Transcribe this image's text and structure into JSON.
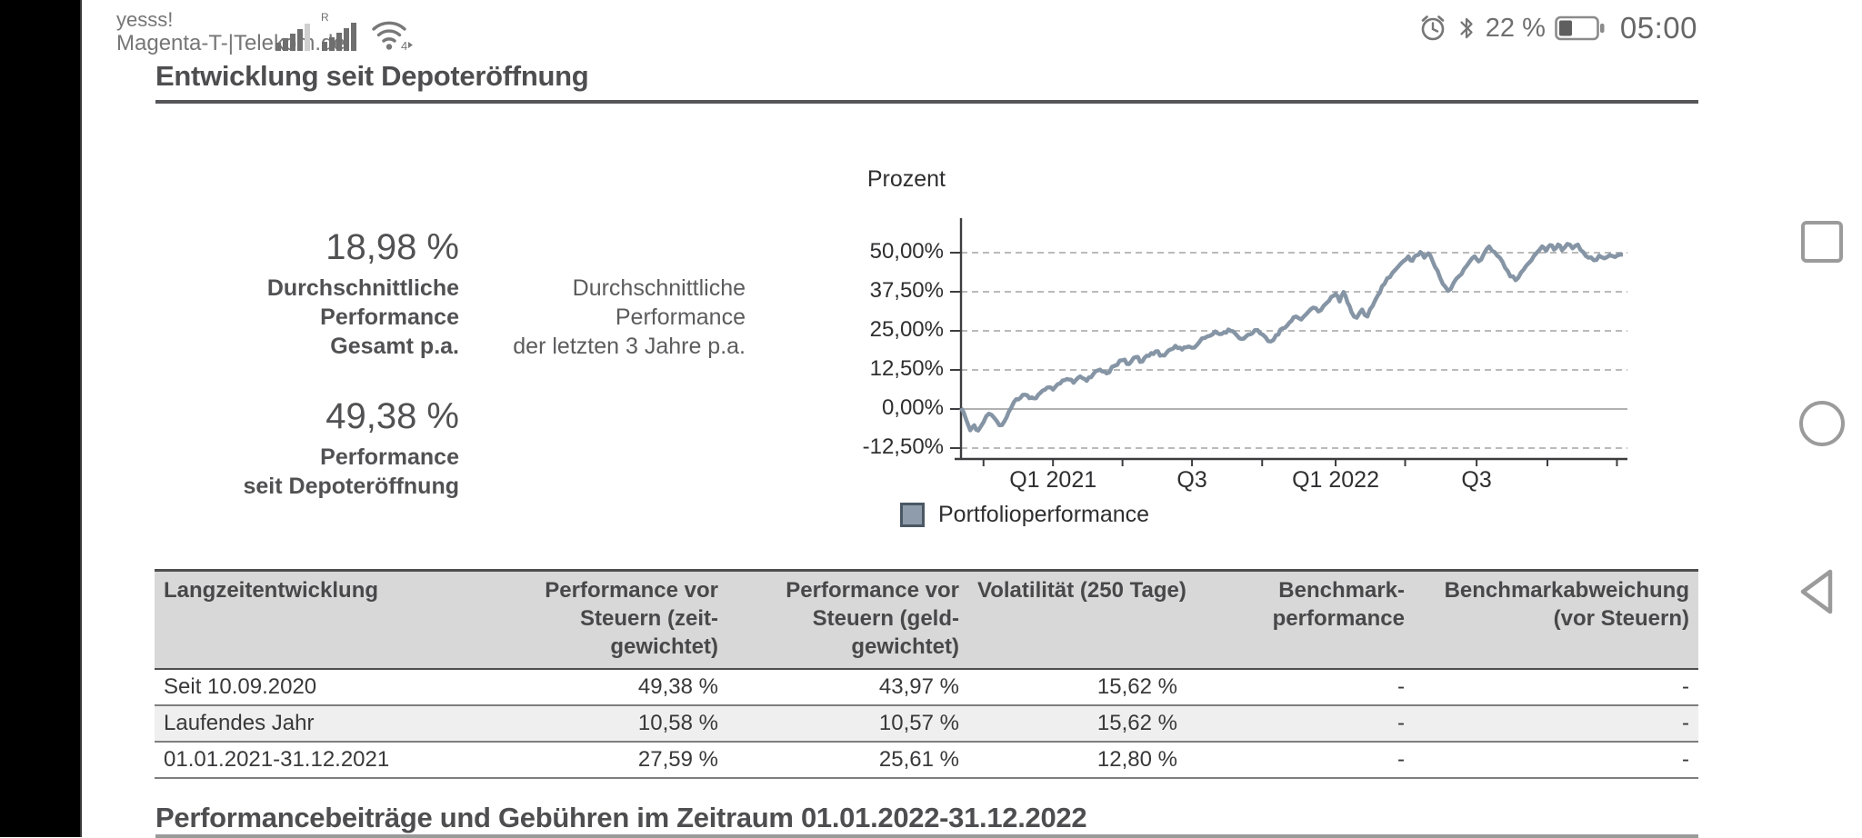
{
  "status_bar": {
    "carrier_line1": "yesss!",
    "carrier_line2": "Magenta-T-|Telekom.de",
    "roaming_badge": "R",
    "wifi_badge": "4",
    "battery_level": "22 %",
    "time": "05:00"
  },
  "page": {
    "title": "Entwicklung seit Depoteröffnung",
    "next_section_title": "Performancebeiträge und Gebühren im Zeitraum 01.01.2022-31.12.2022"
  },
  "stats": {
    "avg_total_value": "18,98 %",
    "avg_total_label": "Durchschnittliche\nPerformance\nGesamt p.a.",
    "avg_3y_label": "Durchschnittliche\nPerformance\nder letzten 3 Jahre p.a.",
    "since_opening_value": "49,38 %",
    "since_opening_label": "Performance\nseit Depoteröffnung"
  },
  "chart_data": {
    "type": "line",
    "axis_title": "Prozent",
    "ylabel": "Prozent",
    "ylim": [
      -16.3,
      61.6
    ],
    "grid": true,
    "legend_position": "bottom-left",
    "legend": [
      {
        "label": "Portfolioperformance",
        "fill": "#8e9cab",
        "border": "#4b5864"
      }
    ],
    "line_color": "#8695a5",
    "grid_color": "#a3a3a3",
    "zero_line_color": "#b2b2b2",
    "axis_color": "#3d3d3f",
    "y_ticks": [
      {
        "value": 50,
        "label": "50,00%"
      },
      {
        "value": 37.5,
        "label": "37,50%"
      },
      {
        "value": 25,
        "label": "25,00%"
      },
      {
        "value": 12.5,
        "label": "12,50%"
      },
      {
        "value": 0,
        "label": "0,00%"
      },
      {
        "value": -12.5,
        "label": "-12,50%"
      }
    ],
    "x_ticks": [
      {
        "t": 0.139,
        "label": "Q1 2021"
      },
      {
        "t": 0.349,
        "label": "Q3"
      },
      {
        "t": 0.566,
        "label": "Q1 2022"
      },
      {
        "t": 0.779,
        "label": "Q3"
      }
    ],
    "minor_ticks": [
      0.034,
      0.139,
      0.244,
      0.349,
      0.455,
      0.566,
      0.671,
      0.779,
      0.886,
      0.991
    ],
    "series": [
      {
        "name": "Portfolioperformance",
        "points": [
          [
            0.0,
            0.3
          ],
          [
            0.008,
            -3.5
          ],
          [
            0.014,
            -6.8
          ],
          [
            0.02,
            -5.2
          ],
          [
            0.026,
            -6.9
          ],
          [
            0.034,
            -4.2
          ],
          [
            0.042,
            -1.5
          ],
          [
            0.05,
            -2.8
          ],
          [
            0.058,
            -5.2
          ],
          [
            0.066,
            -3.8
          ],
          [
            0.072,
            -1.0
          ],
          [
            0.08,
            2.2
          ],
          [
            0.09,
            3.6
          ],
          [
            0.1,
            4.4
          ],
          [
            0.11,
            3.4
          ],
          [
            0.12,
            5.2
          ],
          [
            0.13,
            6.8
          ],
          [
            0.139,
            6.2
          ],
          [
            0.15,
            8.2
          ],
          [
            0.16,
            9.6
          ],
          [
            0.17,
            8.4
          ],
          [
            0.18,
            10.4
          ],
          [
            0.19,
            9.0
          ],
          [
            0.2,
            11.2
          ],
          [
            0.21,
            12.6
          ],
          [
            0.22,
            11.4
          ],
          [
            0.232,
            13.8
          ],
          [
            0.244,
            15.6
          ],
          [
            0.254,
            14.4
          ],
          [
            0.264,
            16.6
          ],
          [
            0.274,
            15.2
          ],
          [
            0.284,
            17.0
          ],
          [
            0.294,
            18.4
          ],
          [
            0.304,
            17.2
          ],
          [
            0.314,
            18.8
          ],
          [
            0.324,
            20.2
          ],
          [
            0.334,
            19.0
          ],
          [
            0.344,
            20.0
          ],
          [
            0.349,
            19.6
          ],
          [
            0.36,
            21.4
          ],
          [
            0.372,
            23.2
          ],
          [
            0.384,
            24.8
          ],
          [
            0.394,
            24.0
          ],
          [
            0.404,
            25.4
          ],
          [
            0.414,
            24.2
          ],
          [
            0.424,
            22.4
          ],
          [
            0.434,
            23.8
          ],
          [
            0.444,
            25.2
          ],
          [
            0.452,
            24.2
          ],
          [
            0.46,
            23.0
          ],
          [
            0.468,
            21.6
          ],
          [
            0.476,
            23.6
          ],
          [
            0.486,
            25.8
          ],
          [
            0.496,
            27.6
          ],
          [
            0.506,
            29.6
          ],
          [
            0.514,
            28.6
          ],
          [
            0.522,
            30.4
          ],
          [
            0.532,
            32.4
          ],
          [
            0.54,
            31.2
          ],
          [
            0.548,
            33.0
          ],
          [
            0.556,
            34.6
          ],
          [
            0.566,
            36.8
          ],
          [
            0.572,
            34.4
          ],
          [
            0.578,
            37.4
          ],
          [
            0.584,
            34.0
          ],
          [
            0.59,
            31.0
          ],
          [
            0.598,
            29.2
          ],
          [
            0.606,
            31.8
          ],
          [
            0.614,
            29.6
          ],
          [
            0.622,
            33.0
          ],
          [
            0.63,
            36.4
          ],
          [
            0.636,
            39.2
          ],
          [
            0.644,
            41.8
          ],
          [
            0.652,
            43.6
          ],
          [
            0.66,
            45.4
          ],
          [
            0.668,
            47.2
          ],
          [
            0.676,
            48.8
          ],
          [
            0.682,
            47.4
          ],
          [
            0.688,
            49.2
          ],
          [
            0.694,
            50.2
          ],
          [
            0.7,
            48.4
          ],
          [
            0.706,
            49.8
          ],
          [
            0.712,
            47.6
          ],
          [
            0.72,
            44.2
          ],
          [
            0.728,
            40.0
          ],
          [
            0.736,
            37.8
          ],
          [
            0.744,
            40.2
          ],
          [
            0.752,
            42.4
          ],
          [
            0.76,
            44.8
          ],
          [
            0.768,
            47.0
          ],
          [
            0.776,
            48.8
          ],
          [
            0.782,
            47.2
          ],
          [
            0.79,
            49.6
          ],
          [
            0.798,
            52.0
          ],
          [
            0.806,
            50.2
          ],
          [
            0.814,
            48.4
          ],
          [
            0.822,
            45.2
          ],
          [
            0.83,
            42.4
          ],
          [
            0.838,
            41.2
          ],
          [
            0.846,
            43.6
          ],
          [
            0.854,
            45.8
          ],
          [
            0.862,
            47.6
          ],
          [
            0.87,
            50.0
          ],
          [
            0.878,
            52.0
          ],
          [
            0.884,
            50.6
          ],
          [
            0.89,
            52.4
          ],
          [
            0.896,
            51.0
          ],
          [
            0.902,
            52.6
          ],
          [
            0.908,
            50.8
          ],
          [
            0.916,
            52.8
          ],
          [
            0.924,
            51.4
          ],
          [
            0.932,
            52.6
          ],
          [
            0.94,
            50.2
          ],
          [
            0.948,
            48.4
          ],
          [
            0.956,
            47.6
          ],
          [
            0.964,
            49.0
          ],
          [
            0.972,
            48.2
          ],
          [
            0.98,
            49.2
          ],
          [
            0.988,
            48.6
          ],
          [
            1.0,
            49.4
          ]
        ]
      }
    ]
  },
  "table": {
    "headers": [
      "Langzeitentwicklung",
      "Performance vor\nSteuern (zeit-\ngewichtet)",
      "Performance vor\nSteuern (geld-\ngewichtet)",
      "Volatilität (250 Tage)",
      "Benchmark-\nperformance",
      "Benchmarkabweichung\n(vor Steuern)"
    ],
    "rows": [
      [
        "Seit 10.09.2020",
        "49,38 %",
        "43,97 %",
        "15,62 %",
        "-",
        "-"
      ],
      [
        "Laufendes Jahr",
        "10,58 %",
        "10,57 %",
        "15,62 %",
        "-",
        "-"
      ],
      [
        "01.01.2021-31.12.2021",
        "27,59 %",
        "25,61 %",
        "12,80 %",
        "-",
        "-"
      ]
    ]
  }
}
